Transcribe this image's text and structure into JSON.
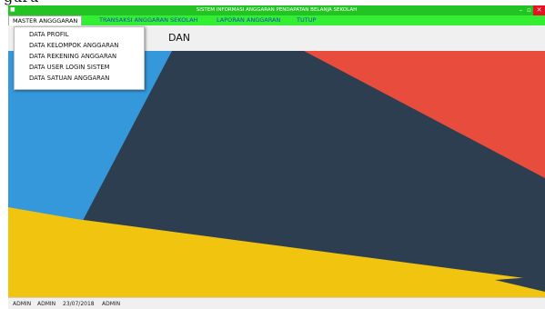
{
  "page_above": {
    "cropped_text": "guru"
  },
  "window": {
    "title": "SISTEM INFORMASI ANGGARAN PENDAPATAN BELANJA SEKOLAH",
    "min_glyph": "–",
    "max_glyph": "▫",
    "close_glyph": "✕"
  },
  "menu": {
    "master": "MASTER ANGGGARAN",
    "transaksi": "TRANSAKSI ANGGARAN SEKOLAH",
    "laporan": "LAPORAN ANGGARAN",
    "tutup": "TUTUP"
  },
  "dropdown": {
    "items": [
      {
        "label": "DATA PROFIL"
      },
      {
        "label": "DATA KELOMPOK ANGGARAN"
      },
      {
        "label": "DATA REKENING ANGGARAN"
      },
      {
        "label": "DATA USER LOGIN SISTEM"
      },
      {
        "label": "DATA SATUAN ANGGARAN"
      }
    ]
  },
  "header": {
    "visible_text": "DAN"
  },
  "status": {
    "user": "ADMIN",
    "name": "ADMIN",
    "date": "23/07/2018",
    "role": "ADMIN"
  },
  "colors": {
    "title_bar": "#22c322",
    "menu_bar": "#33ee33",
    "wallpaper_navy": "#2c3e50",
    "wallpaper_blue": "#3498db",
    "wallpaper_red": "#e74c3c",
    "wallpaper_yellow": "#f1c40f"
  }
}
